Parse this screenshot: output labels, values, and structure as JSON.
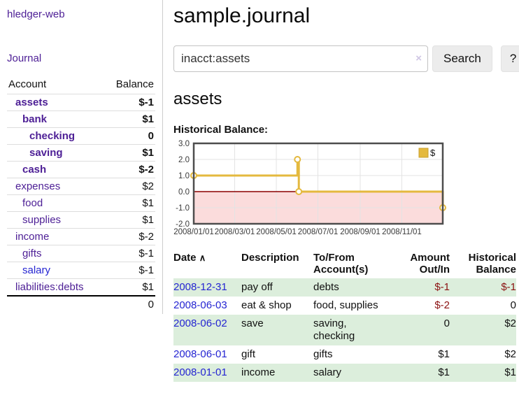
{
  "app": {
    "brand": "hledger-web",
    "nav_journal": "Journal"
  },
  "sidebar": {
    "col_account": "Account",
    "col_balance": "Balance",
    "accounts": [
      {
        "name": "assets",
        "depth": 0,
        "bold": true,
        "link": "purple",
        "balance": "$-1",
        "bal": "neg-strong"
      },
      {
        "name": "bank",
        "depth": 1,
        "bold": true,
        "link": "purple",
        "balance": "$1",
        "bal": "pos"
      },
      {
        "name": "checking",
        "depth": 2,
        "bold": true,
        "link": "purple",
        "balance": "0",
        "bal": "pos"
      },
      {
        "name": "saving",
        "depth": 2,
        "bold": true,
        "link": "purple",
        "balance": "$1",
        "bal": "pos"
      },
      {
        "name": "cash",
        "depth": 1,
        "bold": true,
        "link": "purple",
        "balance": "$-2",
        "bal": "neg-strong"
      },
      {
        "name": "expenses",
        "depth": 0,
        "bold": false,
        "link": "purple",
        "balance": "$2",
        "bal": "pos"
      },
      {
        "name": "food",
        "depth": 1,
        "bold": false,
        "link": "purple",
        "balance": "$1",
        "bal": "pos"
      },
      {
        "name": "supplies",
        "depth": 1,
        "bold": false,
        "link": "purple",
        "balance": "$1",
        "bal": "pos"
      },
      {
        "name": "income",
        "depth": 0,
        "bold": false,
        "link": "purple",
        "balance": "$-2",
        "bal": "neg-soft"
      },
      {
        "name": "gifts",
        "depth": 1,
        "bold": false,
        "link": "purple",
        "balance": "$-1",
        "bal": "neg-soft"
      },
      {
        "name": "salary",
        "depth": 1,
        "bold": false,
        "link": "blue",
        "balance": "$-1",
        "bal": "neg-soft"
      },
      {
        "name": "liabilities:debts",
        "depth": 0,
        "bold": false,
        "link": "purple",
        "balance": "$1",
        "bal": "pos"
      }
    ],
    "total": "0"
  },
  "header": {
    "title": "sample.journal"
  },
  "search": {
    "value": "inacct:assets",
    "clear_icon": "×",
    "button_label": "Search",
    "help_label": "?"
  },
  "account_page": {
    "heading": "assets",
    "chart_label": "Historical Balance:"
  },
  "chart_data": {
    "type": "line",
    "step": true,
    "title": "Historical Balance",
    "legend": {
      "label": "$",
      "position": "top-right"
    },
    "series": [
      {
        "name": "$",
        "color": "#e4b93e",
        "points": [
          {
            "date": "2008-01-01",
            "day": 0,
            "value": 1
          },
          {
            "date": "2008-06-01",
            "day": 152,
            "value": 2
          },
          {
            "date": "2008-06-03",
            "day": 154,
            "value": 0
          },
          {
            "date": "2008-12-31",
            "day": 365,
            "value": -1
          }
        ]
      }
    ],
    "xlim_days": [
      0,
      365
    ],
    "ylim": [
      -2,
      3
    ],
    "x_ticks": [
      {
        "day": 0,
        "label": "2008/01/01"
      },
      {
        "day": 60,
        "label": "2008/03/01"
      },
      {
        "day": 121,
        "label": "2008/05/01"
      },
      {
        "day": 182,
        "label": "2008/07/01"
      },
      {
        "day": 244,
        "label": "2008/09/01"
      },
      {
        "day": 305,
        "label": "2008/11/01"
      }
    ],
    "y_ticks": [
      {
        "value": 3,
        "label": "3.0"
      },
      {
        "value": 2,
        "label": "2.0"
      },
      {
        "value": 1,
        "label": "1.0"
      },
      {
        "value": 0,
        "label": "0.0"
      },
      {
        "value": -1,
        "label": "-1.0"
      },
      {
        "value": -2,
        "label": "-2.0"
      }
    ],
    "grid": true,
    "colors": {
      "negative_region": "#fbdcdc",
      "zero_line": "#8b0000",
      "grid_line": "#e3e3e3",
      "border": "#4d4d4d",
      "marker_fill": "#ffffff",
      "tick_text": "#3a3a3a",
      "legend_swatch_border": "#c9a02f"
    }
  },
  "transactions": {
    "headers": {
      "date": "Date",
      "sort_icon": "∧",
      "description": "Description",
      "tofrom_line1": "To/From",
      "tofrom_line2": "Account(s)",
      "amount_line1": "Amount",
      "amount_line2": "Out/In",
      "balance_line1": "Historical",
      "balance_line2": "Balance"
    },
    "rows": [
      {
        "date": "2008-12-31",
        "description": "pay off",
        "accounts": "debts",
        "amount": "$-1",
        "amount_neg": true,
        "balance": "$-1",
        "balance_neg": true,
        "striped": true
      },
      {
        "date": "2008-06-03",
        "description": "eat & shop",
        "accounts": "food, supplies",
        "amount": "$-2",
        "amount_neg": true,
        "balance": "0",
        "balance_neg": false,
        "striped": false
      },
      {
        "date": "2008-06-02",
        "description": "save",
        "accounts": "saving, checking",
        "amount": "0",
        "amount_neg": false,
        "balance": "$2",
        "balance_neg": false,
        "striped": true
      },
      {
        "date": "2008-06-01",
        "description": "gift",
        "accounts": "gifts",
        "amount": "$1",
        "amount_neg": false,
        "balance": "$2",
        "balance_neg": false,
        "striped": false
      },
      {
        "date": "2008-01-01",
        "description": "income",
        "accounts": "salary",
        "amount": "$1",
        "amount_neg": false,
        "balance": "$1",
        "balance_neg": false,
        "striped": true
      }
    ]
  }
}
